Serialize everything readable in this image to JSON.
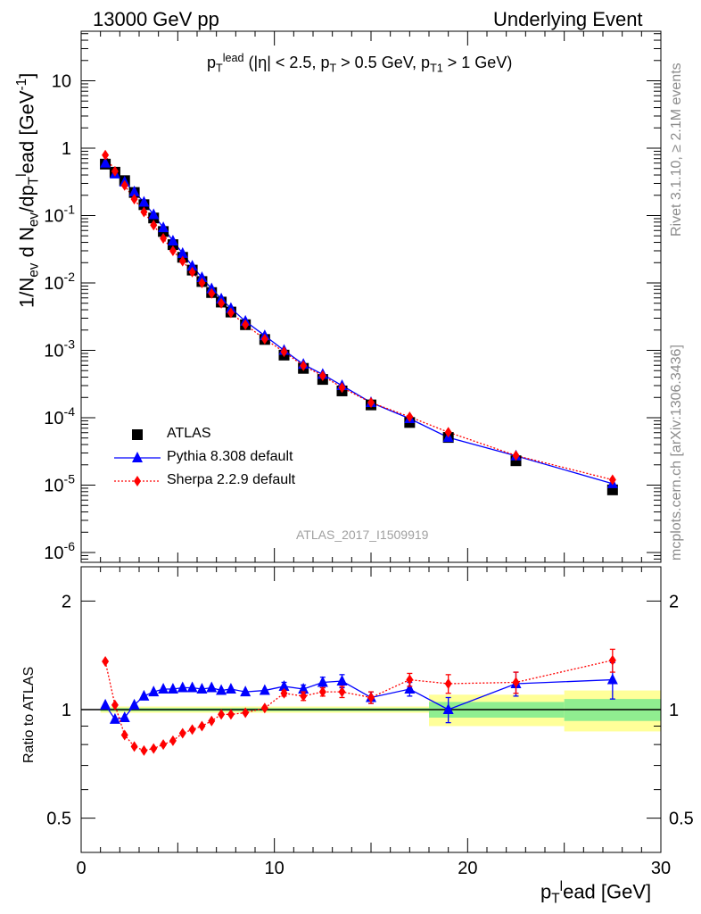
{
  "header": {
    "left": "13000 GeV pp",
    "right": "Underlying Event",
    "side_top": "Rivet 3.1.10, ≥ 2.1M events",
    "side_bottom": "mcplots.cern.ch [arXiv:1306.3436]",
    "watermark": "ATLAS_2017_I1509919"
  },
  "chart_data": [
    {
      "type": "scatter",
      "title": "p_T^lead (|η| < 2.5, p_T > 0.5 GeV, p_T1 > 1 GeV)",
      "ylabel": "1/N_ev d N_ev/dp_T^lead [GeV^-1]",
      "xlabel": "p_T^lead [GeV]",
      "xlim": [
        0,
        30
      ],
      "ylim": [
        5e-07,
        50
      ],
      "yscale": "log",
      "legend_position": "middle-left",
      "x": [
        1.25,
        1.75,
        2.25,
        2.75,
        3.25,
        3.75,
        4.25,
        4.75,
        5.25,
        5.75,
        6.25,
        6.75,
        7.25,
        7.75,
        8.5,
        9.5,
        10.5,
        11.5,
        12.5,
        13.5,
        15.0,
        17.0,
        19.0,
        22.5,
        27.5
      ],
      "series": [
        {
          "name": "ATLAS",
          "color": "#000000",
          "marker": "square",
          "values": [
            0.58,
            0.44,
            0.33,
            0.22,
            0.145,
            0.092,
            0.058,
            0.037,
            0.024,
            0.0155,
            0.0105,
            0.0072,
            0.0052,
            0.0037,
            0.0024,
            0.00145,
            0.00085,
            0.00054,
            0.00037,
            0.00025,
            0.000155,
            8.5e-05,
            5.1e-05,
            2.3e-05,
            8.5e-06
          ]
        },
        {
          "name": "Pythia 8.308 default",
          "color": "#0000ff",
          "marker": "triangle",
          "line": "solid",
          "values": [
            0.6,
            0.415,
            0.315,
            0.225,
            0.158,
            0.103,
            0.066,
            0.042,
            0.0275,
            0.0178,
            0.012,
            0.0082,
            0.0058,
            0.0042,
            0.0027,
            0.00165,
            0.001,
            0.00062,
            0.00044,
            0.0003,
            0.000168,
            9.7e-05,
            5.1e-05,
            2.72e-05,
            1.05e-05
          ]
        },
        {
          "name": "Sherpa 2.2.9 default",
          "color": "#ff0000",
          "marker": "diamond",
          "line": "dotted",
          "values": [
            0.79,
            0.455,
            0.28,
            0.175,
            0.113,
            0.072,
            0.046,
            0.03,
            0.021,
            0.0145,
            0.01,
            0.007,
            0.005,
            0.0036,
            0.0024,
            0.00147,
            0.00095,
            0.00059,
            0.00042,
            0.00028,
            0.000168,
            0.000103,
            6.1e-05,
            2.75e-05,
            1.2e-05
          ]
        }
      ],
      "y_tick_labels": [
        "10",
        "1",
        "10^-1",
        "10^-2",
        "10^-3",
        "10^-4",
        "10^-5",
        "10^-6"
      ]
    },
    {
      "type": "scatter",
      "ylabel": "Ratio to ATLAS",
      "xlabel": "p_T^lead [GeV]",
      "xlim": [
        0,
        30
      ],
      "ylim": [
        0.4,
        2.4
      ],
      "yscale": "log",
      "x_tick_labels": [
        "0",
        "10",
        "20",
        "30"
      ],
      "y_tick_labels": [
        "0.5",
        "1",
        "2"
      ],
      "band_edges": [
        1.0,
        18.0,
        25.0,
        30.0
      ],
      "band_inner_halfwidth": [
        0.01,
        0.05,
        0.07
      ],
      "band_outer_halfwidth": [
        0.02,
        0.1,
        0.13
      ],
      "band_inner_color": "#90ee90",
      "band_outer_color": "#ffff99",
      "series": [
        {
          "name": "Pythia 8.308 default",
          "color": "#0000ff",
          "values": [
            1.03,
            0.94,
            0.95,
            1.03,
            1.09,
            1.12,
            1.14,
            1.14,
            1.15,
            1.15,
            1.14,
            1.15,
            1.13,
            1.14,
            1.12,
            1.13,
            1.16,
            1.14,
            1.19,
            1.2,
            1.08,
            1.14,
            1.0,
            1.18,
            1.21
          ],
          "err": [
            0.01,
            0.01,
            0.01,
            0.01,
            0.01,
            0.01,
            0.01,
            0.01,
            0.01,
            0.01,
            0.01,
            0.01,
            0.01,
            0.01,
            0.01,
            0.01,
            0.03,
            0.03,
            0.04,
            0.05,
            0.04,
            0.05,
            0.08,
            0.09,
            0.14
          ]
        },
        {
          "name": "Sherpa 2.2.9 default",
          "color": "#ff0000",
          "values": [
            1.36,
            1.03,
            0.85,
            0.79,
            0.77,
            0.78,
            0.8,
            0.82,
            0.86,
            0.88,
            0.9,
            0.93,
            0.97,
            0.97,
            0.98,
            1.01,
            1.11,
            1.09,
            1.12,
            1.12,
            1.08,
            1.21,
            1.18,
            1.19,
            1.37
          ],
          "err": [
            0.01,
            0.01,
            0.01,
            0.01,
            0.01,
            0.01,
            0.01,
            0.01,
            0.01,
            0.01,
            0.01,
            0.01,
            0.01,
            0.01,
            0.01,
            0.01,
            0.02,
            0.03,
            0.03,
            0.04,
            0.04,
            0.05,
            0.07,
            0.08,
            0.1
          ]
        }
      ]
    }
  ]
}
